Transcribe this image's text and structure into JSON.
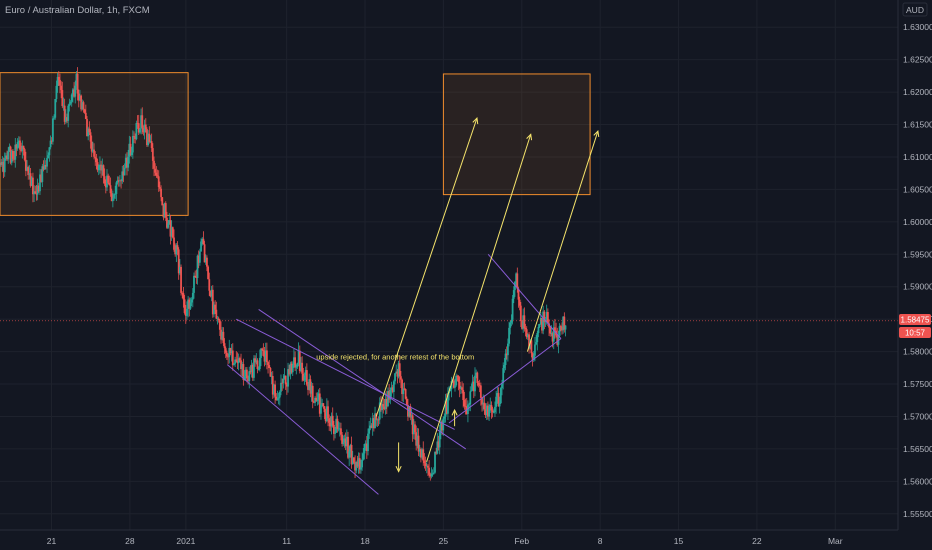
{
  "header": {
    "symbol_title": "Euro / Australian Dollar, 1h, FXCM"
  },
  "currency_badge": "AUD",
  "colors": {
    "background": "#131722",
    "grid": "#1e222d",
    "up": "#26a69a",
    "down": "#ef5350",
    "zone_border": "#f08c2c",
    "zone_fill": "rgba(240,140,44,0.10)",
    "channel": "#8a5cd6",
    "arrow": "#f4e36b",
    "price_line": "#ef5350"
  },
  "price_tag": {
    "price": "1.58475",
    "countdown": "10:57"
  },
  "chart_data": {
    "type": "candlestick",
    "title": "Euro / Australian Dollar, 1h, FXCM",
    "x_axis": {
      "tick_labels": [
        "21",
        "28",
        "2021",
        "11",
        "18",
        "25",
        "Feb",
        "8",
        "15",
        "22",
        "Mar"
      ],
      "tick_day_offsets": [
        0,
        7,
        12,
        21,
        28,
        35,
        42,
        49,
        56,
        63,
        70
      ],
      "range_day_offsets": [
        -4.6,
        75.6
      ]
    },
    "y_axis": {
      "range": [
        1.5525,
        1.6342
      ],
      "ticks": [
        1.555,
        1.56,
        1.565,
        1.57,
        1.575,
        1.58,
        1.585,
        1.59,
        1.595,
        1.6,
        1.605,
        1.61,
        1.615,
        1.62,
        1.625,
        1.63
      ],
      "tick_labels": [
        "1.55500",
        "1.56000",
        "1.56500",
        "1.57000",
        "1.57500",
        "1.58000",
        "1.58500",
        "1.59000",
        "1.59500",
        "1.60000",
        "1.60500",
        "1.61000",
        "1.61500",
        "1.62000",
        "1.62500",
        "1.63000"
      ]
    },
    "price_path": [
      [
        -4.6,
        1.6085
      ],
      [
        -2.8,
        1.612
      ],
      [
        -1.5,
        1.604
      ],
      [
        0.0,
        1.612
      ],
      [
        0.5,
        1.623
      ],
      [
        1.2,
        1.615
      ],
      [
        2.2,
        1.622
      ],
      [
        3.0,
        1.615
      ],
      [
        4.2,
        1.609
      ],
      [
        5.5,
        1.604
      ],
      [
        7.0,
        1.611
      ],
      [
        8.0,
        1.616
      ],
      [
        9.0,
        1.61
      ],
      [
        10.0,
        1.602
      ],
      [
        11.2,
        1.595
      ],
      [
        12.0,
        1.585
      ],
      [
        13.0,
        1.593
      ],
      [
        13.5,
        1.597
      ],
      [
        14.5,
        1.586
      ],
      [
        15.5,
        1.581
      ],
      [
        17.5,
        1.576
      ],
      [
        19.0,
        1.58
      ],
      [
        20.0,
        1.573
      ],
      [
        22.0,
        1.579
      ],
      [
        23.5,
        1.573
      ],
      [
        25.5,
        1.568
      ],
      [
        27.5,
        1.562
      ],
      [
        28.5,
        1.568
      ],
      [
        30.0,
        1.573
      ],
      [
        31.0,
        1.577
      ],
      [
        32.0,
        1.57
      ],
      [
        33.0,
        1.564
      ],
      [
        34.0,
        1.561
      ],
      [
        35.0,
        1.57
      ],
      [
        36.0,
        1.576
      ],
      [
        37.0,
        1.571
      ],
      [
        38.0,
        1.576
      ],
      [
        39.0,
        1.57
      ],
      [
        40.0,
        1.573
      ],
      [
        41.0,
        1.584
      ],
      [
        41.5,
        1.592
      ],
      [
        42.0,
        1.585
      ],
      [
        43.0,
        1.579
      ],
      [
        44.0,
        1.586
      ],
      [
        45.0,
        1.582
      ],
      [
        46.0,
        1.585
      ]
    ],
    "price_line": 1.58475,
    "annotations": [
      {
        "text": "upside rejected, for another retest of the bottom",
        "x": 30.7,
        "y": 1.5788
      }
    ],
    "zones": [
      {
        "name": "supply-zone-left",
        "x0": -4.6,
        "x1": 12.2,
        "y0": 1.601,
        "y1": 1.623
      },
      {
        "name": "target-zone",
        "x0": 35.0,
        "x1": 48.1,
        "y0": 1.6042,
        "y1": 1.6228
      }
    ],
    "trendlines": [
      {
        "name": "channel-upper-1",
        "x0": 18.5,
        "y0": 1.5865,
        "x1": 37.0,
        "y1": 1.565
      },
      {
        "name": "channel-lower-1",
        "x0": 15.7,
        "y0": 1.578,
        "x1": 29.2,
        "y1": 1.558
      },
      {
        "name": "channel-inner-1",
        "x0": 16.5,
        "y0": 1.585,
        "x1": 36.0,
        "y1": 1.568
      },
      {
        "name": "triangle-upper",
        "x0": 39.0,
        "y0": 1.595,
        "x1": 45.5,
        "y1": 1.582
      },
      {
        "name": "triangle-lower",
        "x0": 35.5,
        "y0": 1.569,
        "x1": 45.5,
        "y1": 1.582
      }
    ],
    "arrows": [
      {
        "name": "projection-arrow-1",
        "x0": 29.0,
        "y0": 1.57,
        "x1": 38.0,
        "y1": 1.616
      },
      {
        "name": "projection-arrow-2",
        "x0": 33.5,
        "y0": 1.563,
        "x1": 42.8,
        "y1": 1.6135
      },
      {
        "name": "projection-arrow-3",
        "x0": 42.5,
        "y0": 1.58,
        "x1": 48.8,
        "y1": 1.614
      },
      {
        "name": "retest-arrow-down",
        "x0": 31.0,
        "y0": 1.566,
        "x1": 31.0,
        "y1": 1.5615
      },
      {
        "name": "retest-arrow-up",
        "x0": 36.0,
        "y0": 1.5685,
        "x1": 36.0,
        "y1": 1.571
      }
    ]
  }
}
